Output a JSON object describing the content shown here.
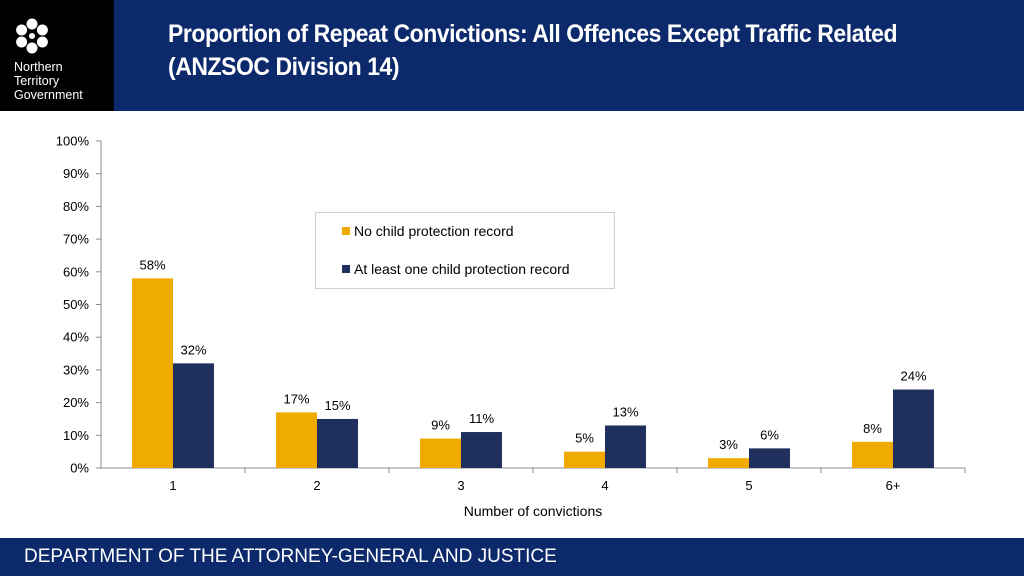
{
  "logo": {
    "icon": "flower-emblem-icon",
    "lines": [
      "Northern",
      "Territory",
      "Government"
    ]
  },
  "header": {
    "title_line1": "Proportion of Repeat Convictions: All Offences Except Traffic Related",
    "title_line2": "(ANZSOC Division 14)"
  },
  "footer": {
    "text": "DEPARTMENT OF THE ATTORNEY-GENERAL AND JUSTICE"
  },
  "colors": {
    "header_bg": "#0c2a6b",
    "series_no_record": "#f0ab00",
    "series_with_record": "#1f305e"
  },
  "chart_data": {
    "type": "bar",
    "title": "Proportion of Repeat Convictions: All Offences Except Traffic Related (ANZSOC Division 14)",
    "categories": [
      "1",
      "2",
      "3",
      "4",
      "5",
      "6+"
    ],
    "series": [
      {
        "name": "No child protection record",
        "values": [
          58,
          17,
          9,
          5,
          3,
          8
        ],
        "labels": [
          "58%",
          "17%",
          "9%",
          "5%",
          "3%",
          "8%"
        ]
      },
      {
        "name": "At least one child protection record",
        "values": [
          32,
          15,
          11,
          13,
          6,
          24
        ],
        "labels": [
          "32%",
          "15%",
          "11%",
          "13%",
          "6%",
          "24%"
        ]
      }
    ],
    "xlabel": "Number of convictions",
    "ylabel": "",
    "ylim": [
      0,
      100
    ],
    "yticks": [
      "0%",
      "10%",
      "20%",
      "30%",
      "40%",
      "50%",
      "60%",
      "70%",
      "80%",
      "90%",
      "100%"
    ],
    "grid": false,
    "legend_position": "upper-center"
  }
}
